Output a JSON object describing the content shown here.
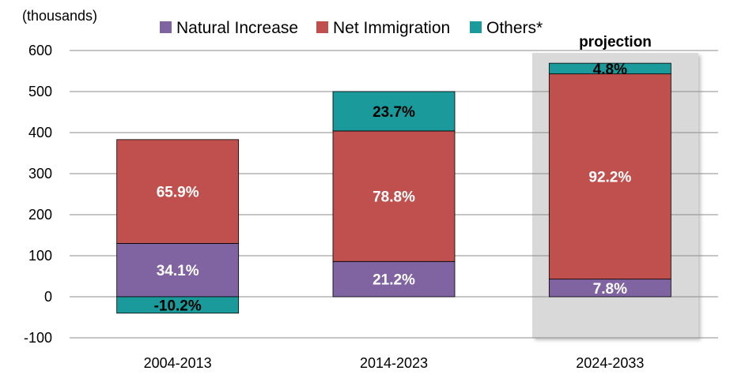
{
  "chart_data": {
    "type": "bar",
    "stacked": true,
    "unit_label": "(thousands)",
    "categories": [
      "2004-2013",
      "2014-2023",
      "2024-2033"
    ],
    "series": [
      {
        "name": "Natural Increase",
        "color": "#8064a2",
        "values": [
          130,
          86,
          43
        ],
        "labels": [
          "34.1%",
          "21.2%",
          "7.8%"
        ]
      },
      {
        "name": "Net Immigration",
        "color": "#c0504d",
        "values": [
          253,
          318,
          500
        ],
        "labels": [
          "65.9%",
          "78.8%",
          "92.2%"
        ]
      },
      {
        "name": "Others*",
        "color": "#1a9a9a",
        "values": [
          -40,
          96,
          26
        ],
        "labels": [
          "-10.2%",
          "23.7%",
          "4.8%"
        ]
      }
    ],
    "ylim": [
      -100,
      600
    ],
    "yticks": [
      -100,
      0,
      100,
      200,
      300,
      400,
      500,
      600
    ],
    "grid": true,
    "legend_position": "top",
    "annotation": {
      "text": "projection",
      "category_index": 2
    }
  }
}
